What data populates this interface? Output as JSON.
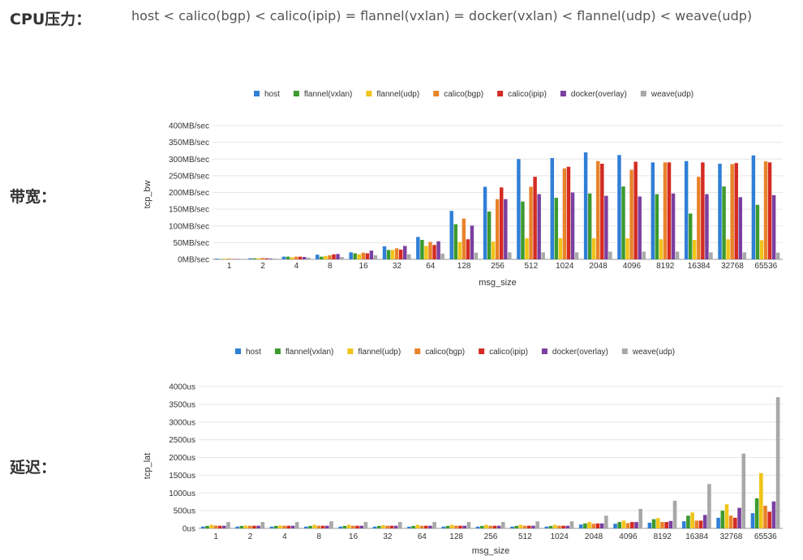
{
  "cpu": {
    "label": "CPU压力：",
    "formula": "host < calico(bgp) < calico(ipip) = flannel(vxlan) = docker(vxlan) < flannel(udp) < weave(udp)"
  },
  "bw_label": "带宽：",
  "lat_label": "延迟：",
  "chart_data": [
    {
      "type": "bar",
      "title": "",
      "xlabel": "msg_size",
      "ylabel": "tcp_bw",
      "ylim": [
        0,
        400
      ],
      "yticks": [
        "0MB/sec",
        "50MB/sec",
        "100MB/sec",
        "150MB/sec",
        "200MB/sec",
        "250MB/sec",
        "300MB/sec",
        "350MB/sec",
        "400MB/sec"
      ],
      "legend": "top",
      "grid": true,
      "categories": [
        "1",
        "2",
        "4",
        "8",
        "16",
        "32",
        "64",
        "128",
        "256",
        "512",
        "1024",
        "2048",
        "4096",
        "8192",
        "16384",
        "32768",
        "65536"
      ],
      "series": [
        {
          "name": "host",
          "color": "#2f7fd6",
          "values": [
            2,
            3,
            8,
            14,
            21,
            39,
            67,
            145,
            217,
            300,
            303,
            320,
            312,
            290,
            294,
            286,
            311
          ]
        },
        {
          "name": "flannel(vxlan)",
          "color": "#3d9a2e",
          "values": [
            1,
            3,
            8,
            8,
            18,
            28,
            58,
            105,
            143,
            173,
            184,
            197,
            218,
            195,
            137,
            218,
            163
          ]
        },
        {
          "name": "flannel(udp)",
          "color": "#f0c419",
          "values": [
            2,
            3,
            6,
            10,
            15,
            28,
            40,
            52,
            53,
            63,
            63,
            63,
            63,
            60,
            58,
            60,
            57
          ]
        },
        {
          "name": "calico(bgp)",
          "color": "#e8832a",
          "values": [
            2,
            4,
            8,
            12,
            20,
            33,
            52,
            122,
            180,
            217,
            272,
            294,
            268,
            290,
            247,
            285,
            293
          ]
        },
        {
          "name": "calico(ipip)",
          "color": "#d42b22",
          "values": [
            1,
            3,
            8,
            15,
            18,
            29,
            43,
            60,
            215,
            247,
            277,
            286,
            292,
            290,
            290,
            288,
            290
          ]
        },
        {
          "name": "docker(overlay)",
          "color": "#7b3fa0",
          "values": [
            1,
            2,
            7,
            16,
            26,
            40,
            54,
            101,
            180,
            195,
            200,
            190,
            188,
            197,
            195,
            186,
            192
          ]
        },
        {
          "name": "weave(udp)",
          "color": "#a8a8a8",
          "values": [
            1,
            2,
            5,
            7,
            12,
            15,
            17,
            20,
            21,
            21,
            21,
            23,
            23,
            23,
            21,
            21,
            20
          ]
        }
      ]
    },
    {
      "type": "bar",
      "title": "",
      "xlabel": "msg_size",
      "ylabel": "tcp_lat",
      "ylim": [
        0,
        4000
      ],
      "yticks": [
        "0us",
        "500us",
        "1000us",
        "1500us",
        "2000us",
        "2500us",
        "3000us",
        "3500us",
        "4000us"
      ],
      "legend": "top",
      "grid": true,
      "categories": [
        "1",
        "2",
        "4",
        "8",
        "16",
        "32",
        "64",
        "128",
        "256",
        "512",
        "1024",
        "2048",
        "4096",
        "8192",
        "16384",
        "32768",
        "65536"
      ],
      "series": [
        {
          "name": "host",
          "color": "#2f7fd6",
          "values": [
            50,
            50,
            50,
            50,
            50,
            50,
            50,
            50,
            50,
            50,
            50,
            110,
            130,
            160,
            200,
            300,
            430
          ]
        },
        {
          "name": "flannel(vxlan)",
          "color": "#3d9a2e",
          "values": [
            70,
            70,
            70,
            70,
            70,
            70,
            70,
            70,
            70,
            70,
            70,
            140,
            180,
            260,
            360,
            500,
            850
          ]
        },
        {
          "name": "flannel(udp)",
          "color": "#f0c419",
          "values": [
            100,
            80,
            80,
            100,
            100,
            90,
            100,
            100,
            100,
            100,
            100,
            180,
            220,
            290,
            450,
            680,
            1560
          ]
        },
        {
          "name": "calico(bgp)",
          "color": "#e8832a",
          "values": [
            80,
            75,
            75,
            75,
            75,
            75,
            75,
            75,
            75,
            75,
            75,
            130,
            150,
            180,
            220,
            360,
            640
          ]
        },
        {
          "name": "calico(ipip)",
          "color": "#d42b22",
          "values": [
            75,
            75,
            75,
            75,
            75,
            75,
            75,
            75,
            75,
            75,
            75,
            140,
            180,
            180,
            220,
            300,
            470
          ]
        },
        {
          "name": "docker(overlay)",
          "color": "#7b3fa0",
          "values": [
            75,
            75,
            75,
            75,
            75,
            75,
            75,
            75,
            75,
            75,
            75,
            140,
            180,
            210,
            380,
            580,
            760
          ]
        },
        {
          "name": "weave(udp)",
          "color": "#a8a8a8",
          "values": [
            180,
            180,
            180,
            200,
            180,
            180,
            180,
            180,
            180,
            200,
            200,
            360,
            550,
            780,
            1250,
            2110,
            3700
          ]
        }
      ]
    }
  ]
}
